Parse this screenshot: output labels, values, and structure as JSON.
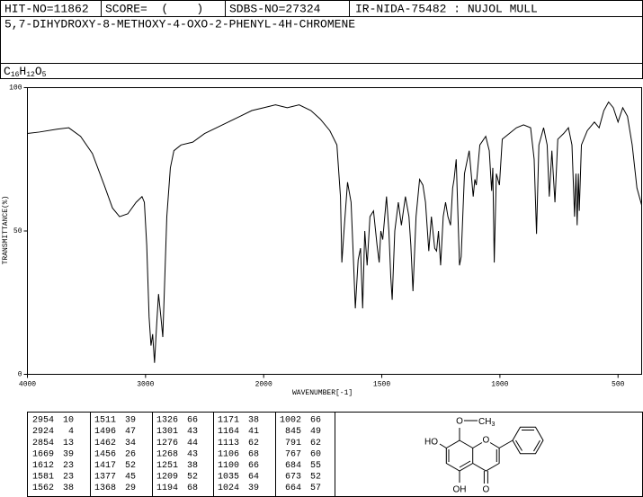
{
  "header": {
    "hit_no": "HIT-NO=11862",
    "score": "SCORE=  (    )",
    "sdbs_no": "SDBS-NO=27324",
    "ir": "IR-NIDA-75482 : NUJOL MULL"
  },
  "compound": "5,7-DIHYDROXY-8-METHOXY-4-OXO-2-PHENYL-4H-CHROMENE",
  "formula": [
    "C",
    "16",
    "H",
    "12",
    "O",
    "5"
  ],
  "chart_data": {
    "type": "line",
    "color": "#000000",
    "xlabel": "WAVENUMBER[-1]",
    "ylabel": "TRANSMITTANCE(%)",
    "xlim": [
      4000,
      400
    ],
    "x_scale_change": 2000,
    "ylim": [
      0,
      100
    ],
    "xticks": [
      4000,
      3000,
      2000,
      1500,
      1000,
      500
    ],
    "yticks": [
      0,
      50,
      100
    ],
    "x": [
      4000,
      3900,
      3750,
      3650,
      3550,
      3450,
      3350,
      3280,
      3220,
      3150,
      3080,
      3030,
      3010,
      2990,
      2970,
      2954,
      2940,
      2924,
      2905,
      2890,
      2870,
      2854,
      2840,
      2820,
      2790,
      2760,
      2700,
      2600,
      2500,
      2400,
      2300,
      2200,
      2100,
      2000,
      1950,
      1900,
      1850,
      1800,
      1760,
      1720,
      1690,
      1675,
      1669,
      1660,
      1645,
      1630,
      1620,
      1612,
      1600,
      1590,
      1581,
      1572,
      1562,
      1550,
      1535,
      1520,
      1511,
      1504,
      1496,
      1480,
      1470,
      1462,
      1456,
      1445,
      1430,
      1417,
      1400,
      1385,
      1377,
      1368,
      1355,
      1340,
      1326,
      1315,
      1301,
      1290,
      1276,
      1268,
      1260,
      1251,
      1240,
      1230,
      1220,
      1209,
      1200,
      1194,
      1185,
      1171,
      1164,
      1150,
      1130,
      1113,
      1106,
      1100,
      1085,
      1060,
      1045,
      1035,
      1030,
      1024,
      1015,
      1002,
      990,
      960,
      930,
      900,
      870,
      855,
      845,
      835,
      815,
      800,
      791,
      780,
      767,
      755,
      730,
      710,
      695,
      684,
      678,
      673,
      668,
      664,
      655,
      630,
      600,
      580,
      560,
      540,
      520,
      500,
      480,
      460,
      440,
      420,
      400
    ],
    "values": [
      84,
      84.5,
      85.5,
      86,
      83,
      77,
      66,
      58,
      55,
      56,
      60,
      62,
      60,
      45,
      20,
      10,
      14,
      4,
      18,
      28,
      20,
      13,
      30,
      55,
      72,
      78,
      80,
      81,
      84,
      86,
      88,
      90,
      92,
      93,
      94,
      93,
      94,
      92,
      89,
      85,
      80,
      62,
      39,
      50,
      67,
      60,
      40,
      23,
      40,
      44,
      23,
      50,
      38,
      55,
      57,
      45,
      39,
      50,
      47,
      62,
      50,
      34,
      26,
      50,
      60,
      52,
      62,
      55,
      45,
      29,
      55,
      68,
      66,
      60,
      43,
      55,
      44,
      43,
      50,
      38,
      55,
      60,
      55,
      52,
      65,
      68,
      75,
      38,
      41,
      70,
      78,
      62,
      68,
      66,
      80,
      83,
      78,
      64,
      72,
      39,
      70,
      66,
      82,
      84,
      86,
      87,
      86,
      75,
      49,
      80,
      86,
      80,
      62,
      78,
      60,
      82,
      84,
      86,
      80,
      55,
      70,
      52,
      70,
      57,
      80,
      85,
      88,
      86,
      92,
      95,
      93,
      88,
      93,
      90,
      80,
      65,
      59
    ]
  },
  "peaks": [
    [
      2954,
      10
    ],
    [
      2924,
      4
    ],
    [
      2854,
      13
    ],
    [
      1669,
      39
    ],
    [
      1612,
      23
    ],
    [
      1581,
      23
    ],
    [
      1562,
      38
    ],
    [
      1511,
      39
    ],
    [
      1496,
      47
    ],
    [
      1462,
      34
    ],
    [
      1456,
      26
    ],
    [
      1417,
      52
    ],
    [
      1377,
      45
    ],
    [
      1368,
      29
    ],
    [
      1326,
      66
    ],
    [
      1301,
      43
    ],
    [
      1276,
      44
    ],
    [
      1268,
      43
    ],
    [
      1251,
      38
    ],
    [
      1209,
      52
    ],
    [
      1194,
      68
    ],
    [
      1171,
      38
    ],
    [
      1164,
      41
    ],
    [
      1113,
      62
    ],
    [
      1106,
      68
    ],
    [
      1100,
      66
    ],
    [
      1035,
      64
    ],
    [
      1024,
      39
    ],
    [
      1002,
      66
    ],
    [
      845,
      49
    ],
    [
      791,
      62
    ],
    [
      767,
      60
    ],
    [
      684,
      55
    ],
    [
      673,
      52
    ],
    [
      664,
      57
    ]
  ],
  "structure": {
    "labels": [
      "HO",
      "O",
      "O",
      "CH",
      "3",
      "OH",
      "O"
    ]
  }
}
